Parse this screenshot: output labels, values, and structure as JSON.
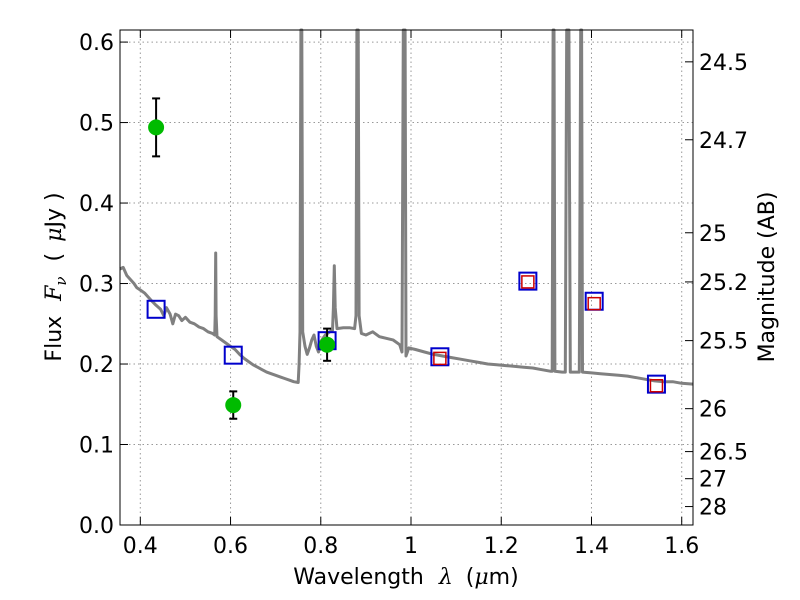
{
  "chart_data": {
    "type": "scatter",
    "xlabel": {
      "prefix": "Wavelength",
      "symbol": "λ",
      "unit_open": "(",
      "unit_mu": "μ",
      "unit_rest": "m)"
    },
    "ylabel": {
      "prefix": "Flux",
      "symbol": "F",
      "sub": "ν",
      "unit_open": "(",
      "unit_mu": "μ",
      "unit_rest": "Jy )"
    },
    "ylabel_right": "Magnitude (AB)",
    "xlim": [
      0.355,
      1.625
    ],
    "ylim": [
      0.0,
      0.615
    ],
    "grid": true,
    "x_ticks": [
      {
        "v": 0.4,
        "label": "0.4"
      },
      {
        "v": 0.6,
        "label": "0.6"
      },
      {
        "v": 0.8,
        "label": "0.8"
      },
      {
        "v": 1.0,
        "label": "1"
      },
      {
        "v": 1.2,
        "label": "1.2"
      },
      {
        "v": 1.4,
        "label": "1.4"
      },
      {
        "v": 1.6,
        "label": "1.6"
      }
    ],
    "y_ticks": [
      {
        "v": 0.0,
        "label": "0.0"
      },
      {
        "v": 0.1,
        "label": "0.1"
      },
      {
        "v": 0.2,
        "label": "0.2"
      },
      {
        "v": 0.3,
        "label": "0.3"
      },
      {
        "v": 0.4,
        "label": "0.4"
      },
      {
        "v": 0.5,
        "label": "0.5"
      },
      {
        "v": 0.6,
        "label": "0.6"
      }
    ],
    "mag_ticks": [
      {
        "mag": 24.5,
        "label": "24.5"
      },
      {
        "mag": 24.7,
        "label": "24.7"
      },
      {
        "mag": 25.0,
        "label": "25"
      },
      {
        "mag": 25.2,
        "label": "25.2"
      },
      {
        "mag": 25.5,
        "label": "25.5"
      },
      {
        "mag": 26.0,
        "label": "26"
      },
      {
        "mag": 26.5,
        "label": "26.5"
      },
      {
        "mag": 27.0,
        "label": "27"
      },
      {
        "mag": 28.0,
        "label": "28"
      }
    ],
    "observed": [
      {
        "x": 0.435,
        "y": 0.494,
        "err": 0.036
      },
      {
        "x": 0.606,
        "y": 0.149,
        "err": 0.017
      },
      {
        "x": 0.814,
        "y": 0.224,
        "err": 0.02
      }
    ],
    "model_photometry": [
      {
        "x": 0.435,
        "y": 0.268
      },
      {
        "x": 0.606,
        "y": 0.211
      },
      {
        "x": 0.814,
        "y": 0.229
      },
      {
        "x": 1.064,
        "y": 0.209
      },
      {
        "x": 1.259,
        "y": 0.303
      },
      {
        "x": 1.406,
        "y": 0.278
      },
      {
        "x": 1.544,
        "y": 0.175
      }
    ],
    "upper_limits": [
      {
        "x": 1.064,
        "y": 0.207
      },
      {
        "x": 1.259,
        "y": 0.302
      },
      {
        "x": 1.406,
        "y": 0.275
      },
      {
        "x": 1.544,
        "y": 0.173
      }
    ],
    "model_spectrum": [
      [
        0.355,
        0.318
      ],
      [
        0.362,
        0.32
      ],
      [
        0.37,
        0.31
      ],
      [
        0.378,
        0.305
      ],
      [
        0.386,
        0.3
      ],
      [
        0.392,
        0.295
      ],
      [
        0.4,
        0.292
      ],
      [
        0.41,
        0.288
      ],
      [
        0.418,
        0.283
      ],
      [
        0.426,
        0.278
      ],
      [
        0.435,
        0.273
      ],
      [
        0.445,
        0.268
      ],
      [
        0.452,
        0.26
      ],
      [
        0.458,
        0.27
      ],
      [
        0.466,
        0.262
      ],
      [
        0.472,
        0.25
      ],
      [
        0.478,
        0.262
      ],
      [
        0.485,
        0.26
      ],
      [
        0.492,
        0.254
      ],
      [
        0.5,
        0.258
      ],
      [
        0.51,
        0.252
      ],
      [
        0.52,
        0.25
      ],
      [
        0.53,
        0.246
      ],
      [
        0.54,
        0.244
      ],
      [
        0.55,
        0.24
      ],
      [
        0.56,
        0.238
      ],
      [
        0.565,
        0.236
      ],
      [
        0.566,
        0.26
      ],
      [
        0.567,
        0.338
      ],
      [
        0.568,
        0.26
      ],
      [
        0.57,
        0.234
      ],
      [
        0.58,
        0.23
      ],
      [
        0.59,
        0.226
      ],
      [
        0.6,
        0.222
      ],
      [
        0.61,
        0.218
      ],
      [
        0.62,
        0.212
      ],
      [
        0.63,
        0.207
      ],
      [
        0.64,
        0.203
      ],
      [
        0.65,
        0.199
      ],
      [
        0.66,
        0.196
      ],
      [
        0.67,
        0.193
      ],
      [
        0.68,
        0.19
      ],
      [
        0.69,
        0.188
      ],
      [
        0.7,
        0.186
      ],
      [
        0.71,
        0.184
      ],
      [
        0.72,
        0.182
      ],
      [
        0.73,
        0.18
      ],
      [
        0.74,
        0.178
      ],
      [
        0.75,
        0.177
      ],
      [
        0.752,
        0.2
      ],
      [
        0.754,
        0.24
      ],
      [
        0.756,
        0.615
      ],
      [
        0.758,
        0.615
      ],
      [
        0.76,
        0.24
      ],
      [
        0.765,
        0.222
      ],
      [
        0.77,
        0.212
      ],
      [
        0.775,
        0.22
      ],
      [
        0.78,
        0.23
      ],
      [
        0.785,
        0.236
      ],
      [
        0.79,
        0.222
      ],
      [
        0.795,
        0.215
      ],
      [
        0.8,
        0.228
      ],
      [
        0.81,
        0.236
      ],
      [
        0.82,
        0.24
      ],
      [
        0.826,
        0.242
      ],
      [
        0.828,
        0.27
      ],
      [
        0.83,
        0.322
      ],
      [
        0.832,
        0.27
      ],
      [
        0.836,
        0.244
      ],
      [
        0.85,
        0.245
      ],
      [
        0.865,
        0.245
      ],
      [
        0.875,
        0.244
      ],
      [
        0.878,
        0.26
      ],
      [
        0.88,
        0.615
      ],
      [
        0.883,
        0.615
      ],
      [
        0.885,
        0.26
      ],
      [
        0.89,
        0.238
      ],
      [
        0.9,
        0.236
      ],
      [
        0.915,
        0.24
      ],
      [
        0.93,
        0.234
      ],
      [
        0.945,
        0.232
      ],
      [
        0.96,
        0.23
      ],
      [
        0.975,
        0.224
      ],
      [
        0.98,
        0.215
      ],
      [
        0.983,
        0.615
      ],
      [
        0.987,
        0.615
      ],
      [
        0.989,
        0.21
      ],
      [
        0.995,
        0.22
      ],
      [
        1.01,
        0.218
      ],
      [
        1.03,
        0.215
      ],
      [
        1.05,
        0.212
      ],
      [
        1.07,
        0.21
      ],
      [
        1.09,
        0.208
      ],
      [
        1.11,
        0.206
      ],
      [
        1.13,
        0.204
      ],
      [
        1.15,
        0.202
      ],
      [
        1.17,
        0.2
      ],
      [
        1.19,
        0.199
      ],
      [
        1.21,
        0.198
      ],
      [
        1.23,
        0.197
      ],
      [
        1.25,
        0.196
      ],
      [
        1.27,
        0.195
      ],
      [
        1.29,
        0.193
      ],
      [
        1.31,
        0.191
      ],
      [
        1.313,
        0.191
      ],
      [
        1.315,
        0.615
      ],
      [
        1.317,
        0.615
      ],
      [
        1.319,
        0.191
      ],
      [
        1.335,
        0.19
      ],
      [
        1.342,
        0.19
      ],
      [
        1.345,
        0.615
      ],
      [
        1.35,
        0.615
      ],
      [
        1.353,
        0.19
      ],
      [
        1.362,
        0.19
      ],
      [
        1.373,
        0.19
      ],
      [
        1.376,
        0.615
      ],
      [
        1.378,
        0.615
      ],
      [
        1.38,
        0.19
      ],
      [
        1.4,
        0.189
      ],
      [
        1.42,
        0.188
      ],
      [
        1.44,
        0.187
      ],
      [
        1.46,
        0.186
      ],
      [
        1.48,
        0.185
      ],
      [
        1.5,
        0.183
      ],
      [
        1.52,
        0.181
      ],
      [
        1.54,
        0.179
      ],
      [
        1.56,
        0.178
      ],
      [
        1.58,
        0.178
      ],
      [
        1.6,
        0.176
      ],
      [
        1.625,
        0.175
      ]
    ],
    "colors": {
      "observed": "#00bb00",
      "model_photometry": "#0000cc",
      "upper_limits": "#cc0000",
      "spectrum": "#808080",
      "grid": "#999999"
    }
  }
}
